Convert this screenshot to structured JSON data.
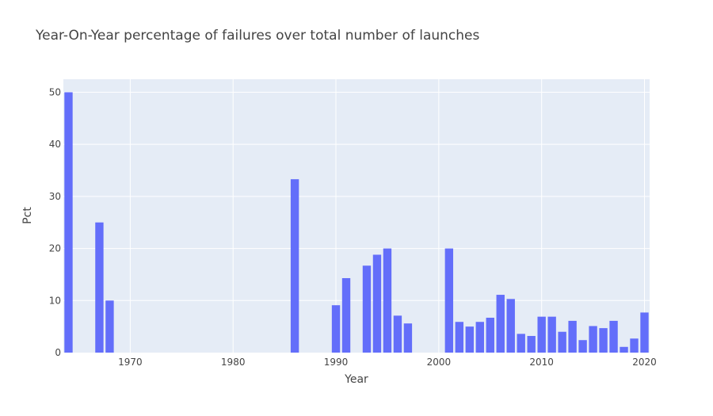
{
  "chart_data": {
    "type": "bar",
    "title": "Year-On-Year percentage of failures over total number of launches",
    "xlabel": "Year",
    "ylabel": "Pct",
    "xlim": [
      1963.5,
      2020.5
    ],
    "ylim": [
      0,
      52.5
    ],
    "x_ticks": [
      1970,
      1980,
      1990,
      2000,
      2010,
      2020
    ],
    "y_ticks": [
      0,
      10,
      20,
      30,
      40,
      50
    ],
    "grid": true,
    "legend": "none",
    "colors": {
      "bar": "#636efa",
      "plot_bg": "#e5ecf6",
      "grid": "#ffffff"
    },
    "x": [
      1964,
      1967,
      1968,
      1986,
      1990,
      1991,
      1993,
      1994,
      1995,
      1996,
      1997,
      2001,
      2002,
      2003,
      2004,
      2005,
      2006,
      2007,
      2008,
      2009,
      2010,
      2011,
      2012,
      2013,
      2014,
      2015,
      2016,
      2017,
      2018,
      2019,
      2020
    ],
    "values": [
      50,
      25,
      10,
      33.3,
      9.1,
      14.3,
      16.7,
      18.8,
      20,
      7.1,
      5.6,
      20,
      5.9,
      5,
      5.9,
      6.7,
      11.1,
      10.3,
      3.6,
      3.2,
      6.9,
      6.9,
      4,
      6.1,
      2.4,
      5.1,
      4.7,
      6.1,
      1.1,
      2.7,
      7.7
    ]
  }
}
